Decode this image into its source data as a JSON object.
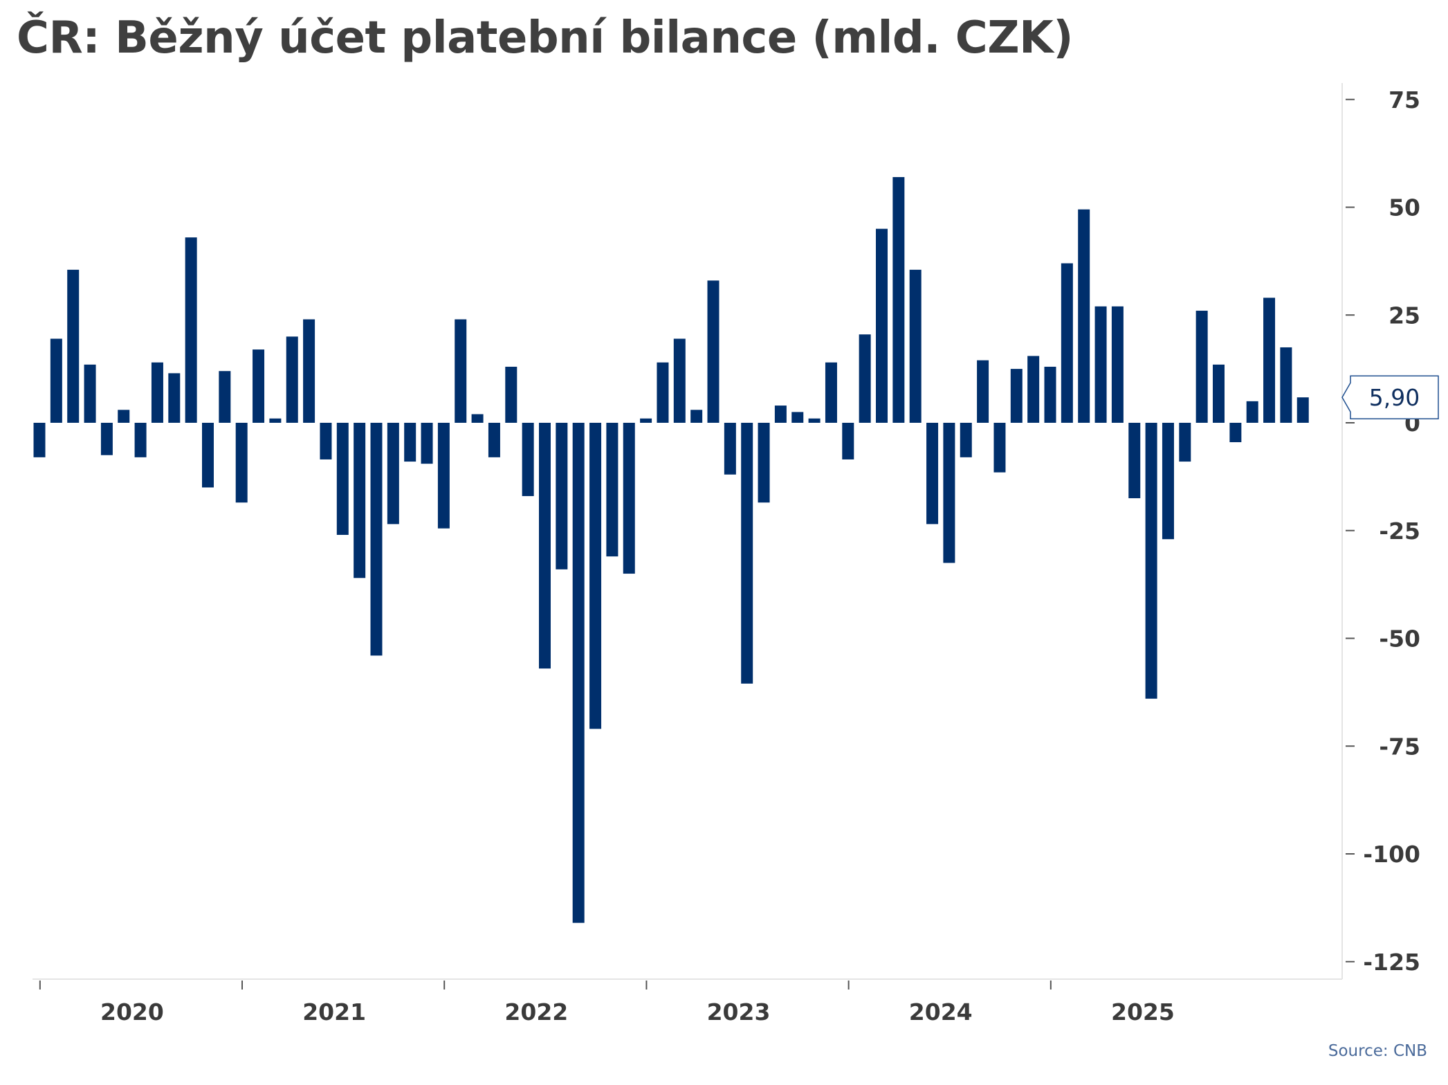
{
  "title": "ČR: Běžný účet platební bilance (mld. CZK)",
  "source": "Source: CNB",
  "colors": {
    "bar": "#002f6c",
    "axis": "#e4e4e4",
    "text": "#3a3a3a",
    "callout_border": "#1f4f8f"
  },
  "chart_data": {
    "type": "bar",
    "title": "ČR: Běžný účet platební bilance (mld. CZK)",
    "xlabel": "",
    "ylabel": "",
    "ylim": [
      -130,
      80
    ],
    "y_axis_position": "right",
    "y_ticks": [
      75,
      50,
      25,
      0,
      -25,
      -50,
      -75,
      -100,
      -125
    ],
    "y_tick_labels": [
      "75",
      "50",
      "25",
      "0",
      "-25",
      "-50",
      "-75",
      "-100",
      "-125"
    ],
    "x_year_labels": [
      "2020",
      "2021",
      "2022",
      "2023",
      "2024",
      "2025"
    ],
    "grid": false,
    "last_value_label": "5,90",
    "series": [
      {
        "values": [
          -8,
          19.5,
          35.5,
          13.5,
          -7.5,
          3,
          -8,
          14,
          11.5,
          43,
          -15,
          12,
          -18.5,
          17,
          1,
          20,
          24,
          -8.5,
          -26,
          -36,
          -54,
          -23.5,
          -9,
          -9.5,
          -24.5,
          24,
          2,
          -8,
          13,
          -17,
          -57,
          -34,
          -116,
          -71,
          -31,
          -35,
          1,
          14,
          19.5,
          3,
          33,
          -12,
          -60.5,
          -18.5,
          4,
          2.5,
          1,
          14,
          -8.5,
          20.5,
          45,
          57,
          35.5,
          -23.5,
          -32.5,
          -8,
          14.5,
          -11.5,
          12.5,
          15.5,
          13,
          37,
          49.5,
          27,
          27,
          -17.5,
          -64,
          -27,
          -9,
          26,
          13.5,
          -4.5,
          5,
          29,
          17.5,
          5.9
        ]
      }
    ]
  }
}
